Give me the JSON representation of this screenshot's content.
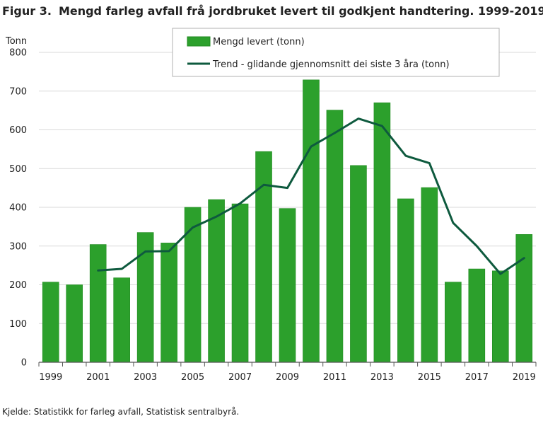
{
  "header": {
    "figure_label": "Figur 3.",
    "title": "Mengd farleg avfall frå jordbruket levert til godkjent handtering. 1999-2019"
  },
  "footer": {
    "source": "Kjelde: Statistikk for farleg avfall, Statistisk sentralbyrå."
  },
  "colors": {
    "bar": "#2ca02c",
    "bar_stroke": "#1f8a1f",
    "trend": "#0e5a3e",
    "grid": "#d9d9d9",
    "axis": "#555555"
  },
  "chart_data": {
    "type": "bar",
    "ylabel": "Tonn",
    "ylim": [
      0,
      800
    ],
    "yticks": [
      0,
      100,
      200,
      300,
      400,
      500,
      600,
      700,
      800
    ],
    "categories": [
      "1999",
      "2000",
      "2001",
      "2002",
      "2003",
      "2004",
      "2005",
      "2006",
      "2007",
      "2008",
      "2009",
      "2010",
      "2011",
      "2012",
      "2013",
      "2014",
      "2015",
      "2016",
      "2017",
      "2018",
      "2019"
    ],
    "xtick_labels": [
      "1999",
      "2001",
      "2003",
      "2005",
      "2007",
      "2009",
      "2011",
      "2013",
      "2015",
      "2017",
      "2019"
    ],
    "grid": true,
    "legend_position": "top-right",
    "series": [
      {
        "name": "Mengd levert (tonn)",
        "type": "bar",
        "values": [
          207,
          200,
          304,
          218,
          335,
          308,
          400,
          420,
          409,
          544,
          397,
          729,
          651,
          508,
          670,
          422,
          451,
          207,
          241,
          236,
          330
        ]
      },
      {
        "name": "Trend - glidande gjennomsnitt dei siste 3 åra (tonn)",
        "type": "line",
        "values": [
          null,
          null,
          237,
          241,
          286,
          287,
          348,
          376,
          410,
          458,
          450,
          557,
          592,
          629,
          610,
          533,
          514,
          360,
          300,
          228,
          269
        ]
      }
    ]
  }
}
